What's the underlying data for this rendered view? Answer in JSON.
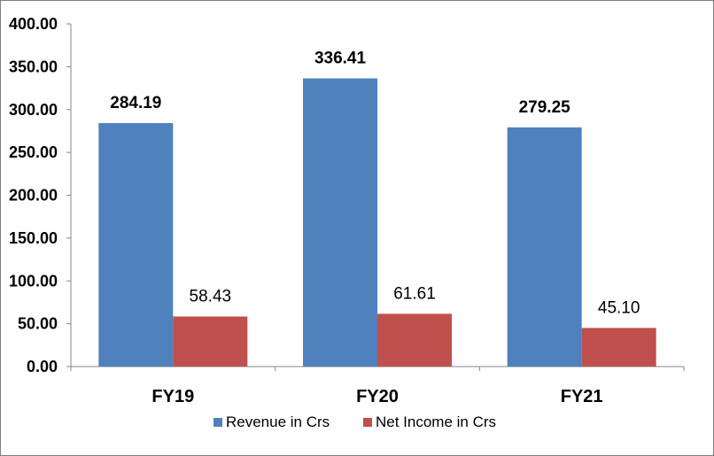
{
  "chart_data": {
    "type": "bar",
    "categories": [
      "FY19",
      "FY20",
      "FY21"
    ],
    "series": [
      {
        "name": "Revenue in Crs",
        "values": [
          284.19,
          336.41,
          279.25
        ],
        "color": "#4f81bd",
        "labels": [
          "284.19",
          "336.41",
          "279.25"
        ]
      },
      {
        "name": "Net Income in Crs",
        "values": [
          58.43,
          61.61,
          45.1
        ],
        "color": "#c0504d",
        "labels": [
          "58.43",
          "61.61",
          "45.10"
        ]
      }
    ],
    "ylim": [
      0,
      400
    ],
    "yticks": [
      "0.00",
      "50.00",
      "100.00",
      "150.00",
      "200.00",
      "250.00",
      "300.00",
      "350.00",
      "400.00"
    ],
    "title": "",
    "xlabel": "",
    "ylabel": "",
    "grid": false,
    "legend_position": "bottom"
  }
}
